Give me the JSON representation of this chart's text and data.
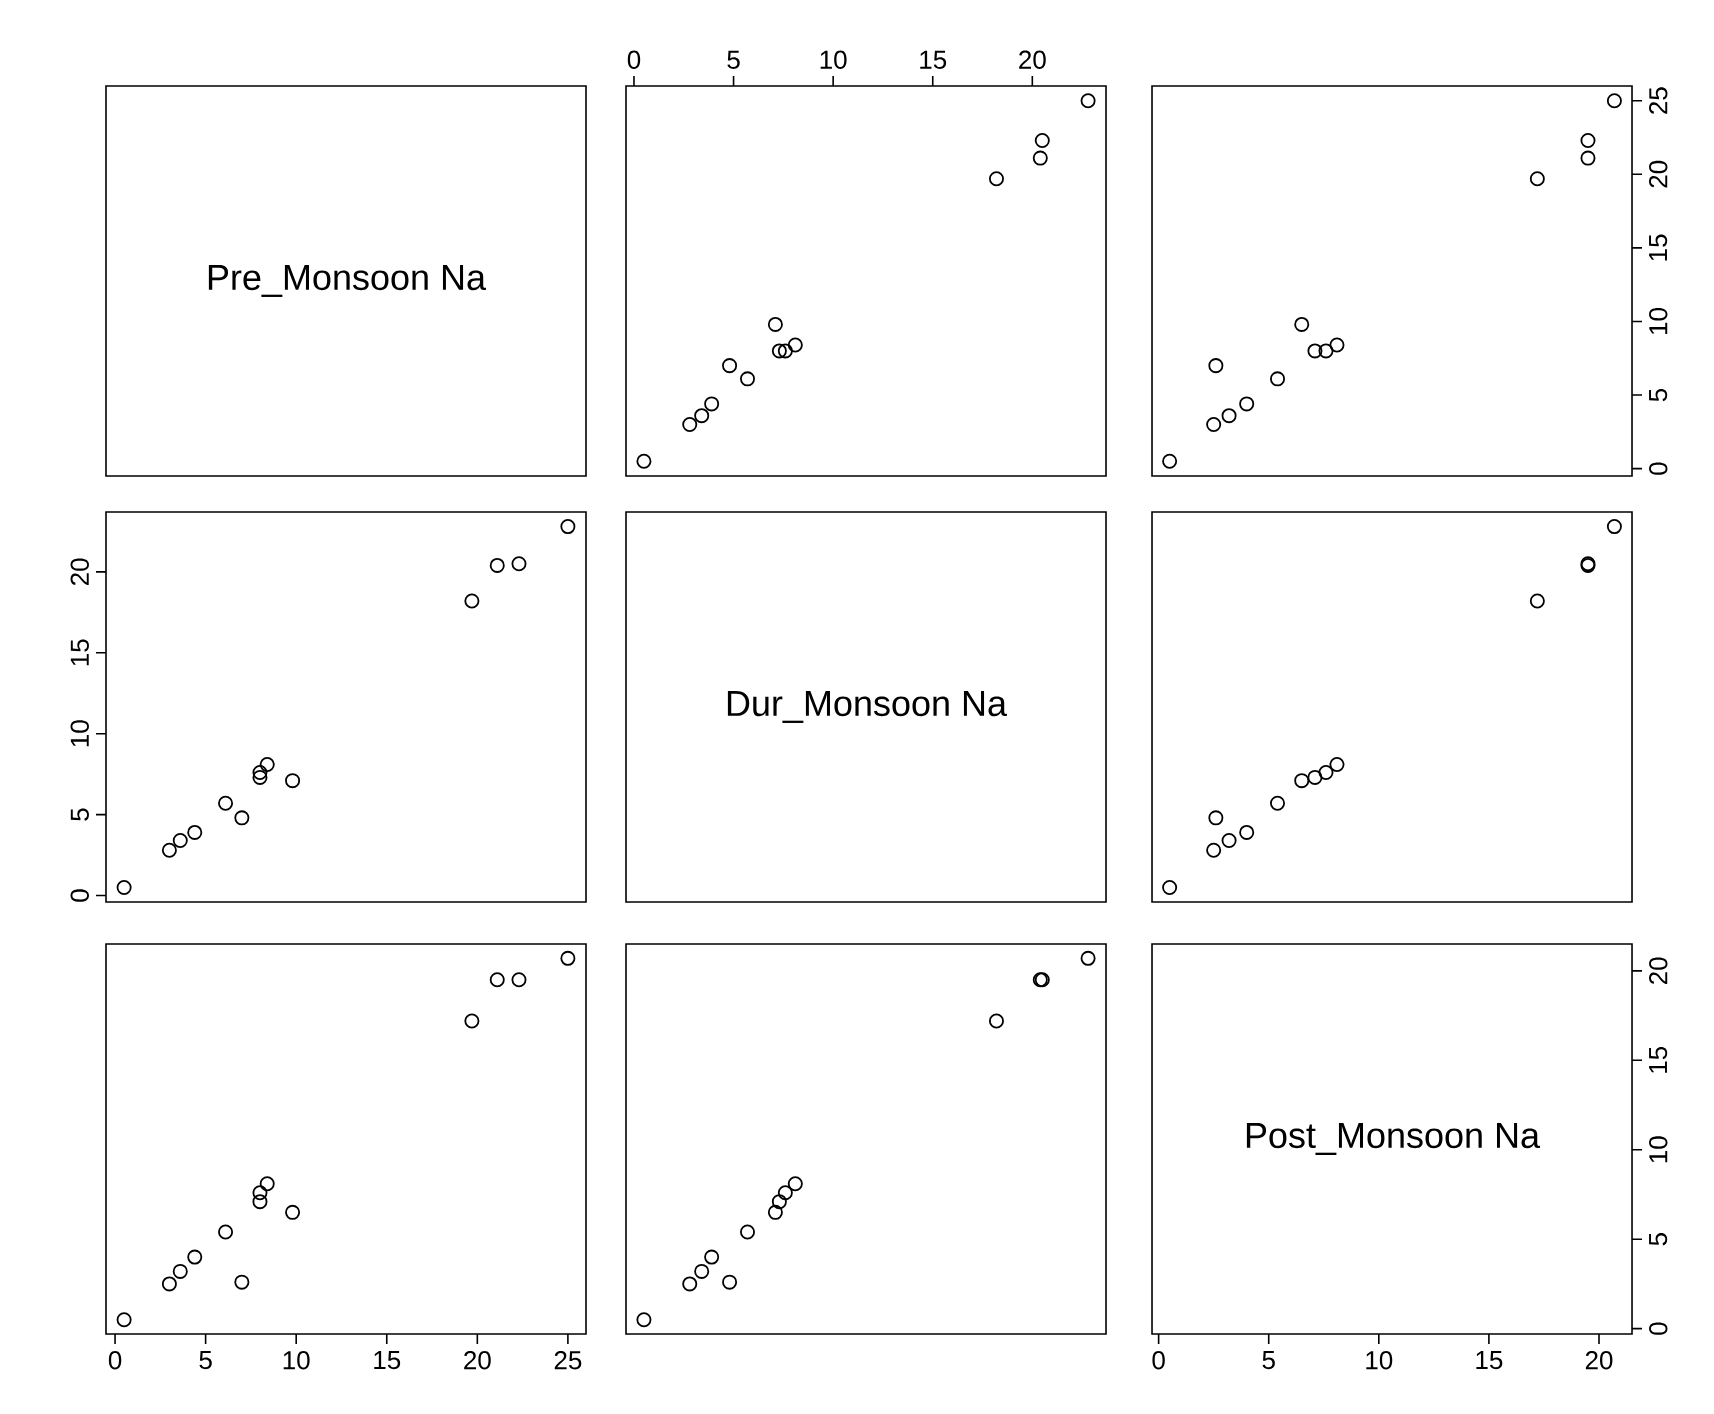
{
  "chart_data": [
    {
      "type": "other",
      "title": "Pre_Monsoon Na"
    },
    {
      "type": "scatter",
      "color": "#000000",
      "marker": "circle",
      "x": [
        0.5,
        2.8,
        3.4,
        3.9,
        5.7,
        4.8,
        7.3,
        7.6,
        8.1,
        7.1,
        18.2,
        20.4,
        20.5,
        22.8
      ],
      "values": [
        0.5,
        3,
        3.6,
        4.4,
        6.1,
        7,
        8,
        8,
        8.4,
        9.8,
        19.7,
        21.1,
        22.3,
        25
      ],
      "xlim": [
        -0.4,
        23.7
      ],
      "ylim": [
        -0.5,
        26
      ],
      "xticks": [
        0,
        5,
        10,
        15,
        20
      ],
      "tick_labels": "x"
    },
    {
      "type": "scatter",
      "color": "#000000",
      "marker": "circle",
      "x": [
        0.5,
        2.5,
        3.2,
        4,
        5.4,
        2.6,
        7.1,
        7.6,
        8.1,
        6.5,
        17.2,
        19.5,
        19.5,
        20.7
      ],
      "values": [
        0.5,
        3,
        3.6,
        4.4,
        6.1,
        7,
        8,
        8,
        8.4,
        9.8,
        19.7,
        21.1,
        22.3,
        25
      ],
      "xlim": [
        -0.3,
        21.5
      ],
      "ylim": [
        -0.5,
        26
      ],
      "yticks": [
        0,
        5,
        10,
        15,
        20,
        25
      ],
      "tick_labels": "y"
    },
    {
      "type": "scatter",
      "color": "#000000",
      "marker": "circle",
      "x": [
        0.5,
        3,
        3.6,
        4.4,
        6.1,
        7,
        8,
        8,
        8.4,
        9.8,
        19.7,
        21.1,
        22.3,
        25
      ],
      "values": [
        0.5,
        2.8,
        3.4,
        3.9,
        5.7,
        4.8,
        7.3,
        7.6,
        8.1,
        7.1,
        18.2,
        20.4,
        20.5,
        22.8
      ],
      "xlim": [
        -0.5,
        26
      ],
      "ylim": [
        -0.4,
        23.7
      ],
      "yticks": [
        0,
        5,
        10,
        15,
        20
      ],
      "tick_labels": "y"
    },
    {
      "type": "other",
      "title": "Dur_Monsoon Na"
    },
    {
      "type": "scatter",
      "color": "#000000",
      "marker": "circle",
      "x": [
        0.5,
        2.5,
        3.2,
        4,
        5.4,
        2.6,
        7.1,
        7.6,
        8.1,
        6.5,
        17.2,
        19.5,
        19.5,
        20.7
      ],
      "values": [
        0.5,
        2.8,
        3.4,
        3.9,
        5.7,
        4.8,
        7.3,
        7.6,
        8.1,
        7.1,
        18.2,
        20.4,
        20.5,
        22.8
      ],
      "xlim": [
        -0.3,
        21.5
      ],
      "ylim": [
        -0.4,
        23.7
      ],
      "tick_labels": false
    },
    {
      "type": "scatter",
      "color": "#000000",
      "marker": "circle",
      "x": [
        0.5,
        3,
        3.6,
        4.4,
        6.1,
        7,
        8,
        8,
        8.4,
        9.8,
        19.7,
        21.1,
        22.3,
        25
      ],
      "values": [
        0.5,
        2.5,
        3.2,
        4,
        5.4,
        2.6,
        7.1,
        7.6,
        8.1,
        6.5,
        17.2,
        19.5,
        19.5,
        20.7
      ],
      "xlim": [
        -0.5,
        26
      ],
      "ylim": [
        -0.3,
        21.5
      ],
      "xticks": [
        0,
        5,
        10,
        15,
        20,
        25
      ],
      "tick_labels": "x"
    },
    {
      "type": "scatter",
      "color": "#000000",
      "marker": "circle",
      "x": [
        0.5,
        2.8,
        3.4,
        3.9,
        5.7,
        4.8,
        7.3,
        7.6,
        8.1,
        7.1,
        18.2,
        20.4,
        20.5,
        22.8
      ],
      "values": [
        0.5,
        2.5,
        3.2,
        4,
        5.4,
        2.6,
        7.1,
        7.6,
        8.1,
        6.5,
        17.2,
        19.5,
        19.5,
        20.7
      ],
      "xlim": [
        -0.4,
        23.7
      ],
      "ylim": [
        -0.3,
        21.5
      ],
      "tick_labels": false
    },
    {
      "type": "scatter",
      "title": "Post_Monsoon Na",
      "xlim": [
        -0.3,
        21.5
      ],
      "xticks": [
        0,
        5,
        10,
        15,
        20
      ],
      "ylim": [
        -0.3,
        21.5
      ],
      "yticks": [
        0,
        5,
        10,
        15,
        20
      ]
    }
  ]
}
